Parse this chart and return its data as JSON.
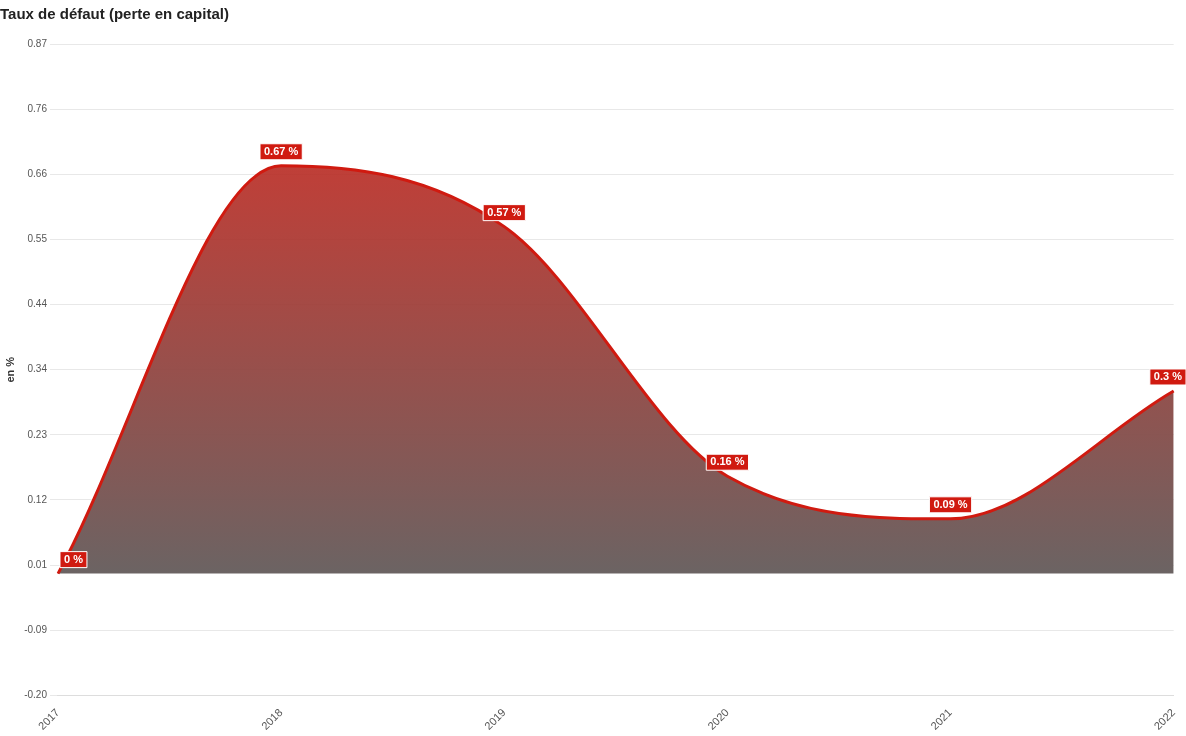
{
  "chart_data": {
    "type": "area",
    "title": "Taux de défaut (perte en capital)",
    "ylabel": "en %",
    "categories": [
      "2017",
      "2018",
      "2019",
      "2020",
      "2021",
      "2022"
    ],
    "series": [
      {
        "color": "#d01a10",
        "values": [
          0,
          0.67,
          0.57,
          0.16,
          0.09,
          0.3
        ],
        "value_labels": [
          "0 %",
          "0.67 %",
          "0.57 %",
          "0.16 %",
          "0.09 %",
          "0.3 %"
        ]
      }
    ],
    "ylim": [
      -0.2,
      0.87
    ],
    "yticks": [
      {
        "value": -0.2,
        "label": "-0.20"
      },
      {
        "value": -0.093,
        "label": "-0.09"
      },
      {
        "value": 0.014,
        "label": "0.01"
      },
      {
        "value": 0.121,
        "label": "0.12"
      },
      {
        "value": 0.228,
        "label": "0.23"
      },
      {
        "value": 0.335,
        "label": "0.34"
      },
      {
        "value": 0.442,
        "label": "0.44"
      },
      {
        "value": 0.549,
        "label": "0.55"
      },
      {
        "value": 0.656,
        "label": "0.66"
      },
      {
        "value": 0.763,
        "label": "0.76"
      },
      {
        "value": 0.87,
        "label": "0.87"
      }
    ],
    "grid": "y",
    "legend": false
  }
}
